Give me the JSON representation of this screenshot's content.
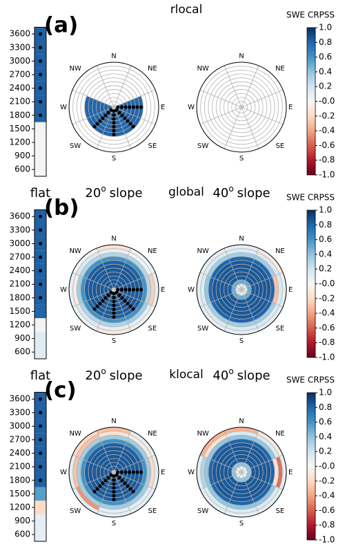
{
  "chart_data": {
    "type": "polar-grid",
    "aspects": [
      "N",
      "NE",
      "E",
      "SE",
      "S",
      "SW",
      "W",
      "NW"
    ],
    "elevations": [
      600,
      900,
      1200,
      1500,
      1800,
      2100,
      2400,
      2700,
      3000,
      3300,
      3600
    ],
    "flat_label": "flat",
    "slope_word": "slope",
    "degree_mark": "o",
    "colorbar": {
      "title": "SWE CRPSS",
      "colormap": "RdBu",
      "lim": [
        -1,
        1
      ],
      "ticks": [
        {
          "value": 1,
          "label": "1.0"
        },
        0.8,
        0.6,
        0.4,
        0.2,
        {
          "value": 0,
          "label": "-0.0"
        },
        -0.2,
        -0.4,
        -0.6,
        -0.8,
        {
          "value": -1,
          "label": "-1.0"
        }
      ]
    },
    "panels": [
      {
        "label": "(a)",
        "title": "rlocal",
        "flat_values": [
          0.02,
          0.02,
          0.02,
          0.02,
          0.82,
          0.82,
          0.82,
          0.82,
          0.82,
          0.82,
          0.82
        ],
        "significant": [
          false,
          false,
          false,
          false,
          true,
          true,
          true,
          true,
          true,
          true,
          true
        ],
        "polar": [
          {
            "slope": "20",
            "significant_aspects": [
              2,
              3,
              4,
              5
            ],
            "values": [
              [
                null,
                null,
                null,
                null,
                null,
                null,
                null,
                null,
                null,
                null,
                null
              ],
              [
                null,
                null,
                null,
                null,
                null,
                null,
                null,
                null,
                null,
                null,
                null
              ],
              [
                null,
                null,
                null,
                null,
                0.8,
                0.8,
                0.8,
                0.8,
                0.8,
                0.8,
                0.8
              ],
              [
                null,
                null,
                null,
                null,
                0.8,
                0.8,
                0.8,
                0.8,
                0.8,
                0.8,
                0.8
              ],
              [
                null,
                null,
                null,
                null,
                0.8,
                0.8,
                0.8,
                0.8,
                0.8,
                0.8,
                0.8
              ],
              [
                null,
                null,
                null,
                null,
                0.8,
                0.8,
                0.8,
                0.8,
                0.8,
                0.8,
                0.8
              ],
              [
                null,
                null,
                null,
                null,
                0.8,
                0.8,
                0.8,
                0.8,
                0.8,
                0.8,
                0.8
              ],
              [
                null,
                null,
                null,
                null,
                null,
                null,
                null,
                null,
                null,
                null,
                null
              ]
            ]
          },
          {
            "slope": "40",
            "values": [
              [
                null,
                null,
                null,
                null,
                null,
                null,
                null,
                null,
                null,
                null,
                null
              ],
              [
                null,
                null,
                null,
                null,
                null,
                null,
                null,
                null,
                null,
                null,
                null
              ],
              [
                null,
                null,
                null,
                null,
                null,
                null,
                null,
                null,
                null,
                null,
                null
              ],
              [
                null,
                null,
                null,
                null,
                null,
                null,
                null,
                null,
                null,
                null,
                null
              ],
              [
                null,
                null,
                null,
                null,
                null,
                null,
                null,
                null,
                null,
                null,
                null
              ],
              [
                null,
                null,
                null,
                null,
                null,
                null,
                null,
                null,
                null,
                null,
                null
              ],
              [
                null,
                null,
                null,
                null,
                null,
                null,
                null,
                null,
                null,
                null,
                null
              ],
              [
                null,
                null,
                null,
                null,
                null,
                null,
                null,
                null,
                null,
                null,
                null
              ]
            ]
          }
        ]
      },
      {
        "label": "(b)",
        "title": "global",
        "flat_values": [
          0.12,
          0.12,
          0.03,
          0.8,
          0.82,
          0.82,
          0.82,
          0.82,
          0.82,
          0.82,
          0.82
        ],
        "significant": [
          false,
          false,
          false,
          false,
          true,
          true,
          true,
          true,
          true,
          true,
          true
        ],
        "polar": [
          {
            "slope": "20",
            "significant_aspects": [
              2,
              3,
              4,
              5
            ],
            "values": [
              [
                -0.15,
                0.1,
                0.3,
                0.6,
                0.82,
                0.85,
                0.85,
                0.85,
                0.85,
                0.85,
                0.85
              ],
              [
                0.05,
                0.05,
                0.3,
                0.6,
                0.82,
                0.85,
                0.85,
                0.85,
                0.85,
                0.85,
                0.85
              ],
              [
                0.1,
                -0.25,
                0.3,
                0.6,
                0.82,
                0.85,
                0.85,
                0.85,
                0.85,
                0.85,
                0.85
              ],
              [
                0.05,
                0.1,
                0.35,
                0.6,
                0.82,
                0.85,
                0.85,
                0.85,
                0.85,
                0.85,
                0.85
              ],
              [
                -0.1,
                0.1,
                0.3,
                0.6,
                0.82,
                0.85,
                0.85,
                0.85,
                0.85,
                0.85,
                0.85
              ],
              [
                0.05,
                0.15,
                0.3,
                0.6,
                0.82,
                0.85,
                0.85,
                0.85,
                0.85,
                0.85,
                0.85
              ],
              [
                0.1,
                -0.1,
                0.35,
                0.6,
                0.82,
                0.85,
                0.85,
                0.85,
                0.85,
                0.85,
                0.85
              ],
              [
                0.05,
                0.15,
                0.3,
                0.6,
                0.82,
                0.85,
                0.85,
                0.85,
                0.85,
                0.85,
                0.85
              ]
            ]
          },
          {
            "slope": "40",
            "values": [
              [
                0.1,
                0.15,
                0.35,
                0.8,
                0.85,
                0.85,
                0.85,
                0.85,
                0.85,
                0.5,
                0.1
              ],
              [
                -0.1,
                0.15,
                0.35,
                0.8,
                0.85,
                0.85,
                0.85,
                0.85,
                0.85,
                0.5,
                0.1
              ],
              [
                0.1,
                0.15,
                -0.3,
                0.8,
                0.85,
                0.85,
                0.85,
                0.85,
                0.85,
                0.5,
                0.1
              ],
              [
                0.1,
                0.15,
                0.35,
                0.8,
                0.85,
                0.85,
                0.85,
                0.85,
                0.85,
                0.5,
                0.1
              ],
              [
                0.1,
                0.15,
                0.35,
                0.8,
                0.85,
                0.85,
                0.85,
                0.85,
                0.85,
                0.5,
                0.1
              ],
              [
                0.1,
                0.15,
                0.35,
                0.8,
                0.85,
                0.85,
                0.85,
                0.85,
                0.85,
                0.5,
                0.1
              ],
              [
                0.1,
                0.15,
                0.4,
                0.8,
                0.85,
                0.85,
                0.85,
                0.85,
                0.85,
                0.5,
                0.1
              ],
              [
                0.1,
                0.15,
                0.35,
                0.8,
                0.85,
                0.85,
                0.85,
                0.85,
                0.85,
                0.5,
                0.1
              ]
            ]
          }
        ]
      },
      {
        "label": "(c)",
        "title": "klocal",
        "flat_values": [
          0.1,
          0.1,
          -0.2,
          0.55,
          0.82,
          0.82,
          0.82,
          0.82,
          0.82,
          0.82,
          0.82
        ],
        "significant": [
          false,
          false,
          false,
          false,
          true,
          true,
          true,
          true,
          true,
          true,
          true
        ],
        "polar": [
          {
            "slope": "20",
            "significant_aspects": [
              2,
              3,
              4,
              5
            ],
            "values": [
              [
                -0.3,
                -0.15,
                0.35,
                0.6,
                0.82,
                0.85,
                0.85,
                0.85,
                0.85,
                0.85,
                0.85
              ],
              [
                0.1,
                -0.1,
                0.35,
                0.6,
                0.82,
                0.85,
                0.85,
                0.85,
                0.85,
                0.85,
                0.85
              ],
              [
                0.1,
                -0.2,
                0.35,
                0.6,
                0.82,
                0.85,
                0.85,
                0.85,
                0.85,
                0.85,
                0.85
              ],
              [
                0.1,
                0.1,
                0.35,
                0.6,
                0.82,
                0.85,
                0.85,
                0.85,
                0.85,
                0.85,
                0.85
              ],
              [
                0.1,
                0.1,
                0.35,
                0.6,
                0.82,
                0.85,
                0.85,
                0.85,
                0.85,
                0.85,
                0.85
              ],
              [
                0.1,
                -0.45,
                0.35,
                0.6,
                0.82,
                0.85,
                0.85,
                0.85,
                0.85,
                0.85,
                0.85
              ],
              [
                0.1,
                -0.3,
                0.35,
                0.6,
                0.82,
                0.85,
                0.85,
                0.85,
                0.85,
                0.85,
                0.85
              ],
              [
                -0.2,
                -0.3,
                0.35,
                0.6,
                0.82,
                0.85,
                0.85,
                0.85,
                0.85,
                0.85,
                0.85
              ]
            ]
          },
          {
            "slope": "40",
            "values": [
              [
                -0.35,
                0.15,
                0.4,
                0.8,
                0.85,
                0.85,
                0.85,
                0.85,
                0.85,
                0.4,
                0.05
              ],
              [
                -0.1,
                0.15,
                0.4,
                0.8,
                0.85,
                0.85,
                0.85,
                0.85,
                0.85,
                0.4,
                0.05
              ],
              [
                0.1,
                -0.55,
                -0.15,
                0.8,
                0.85,
                0.85,
                0.85,
                0.85,
                0.85,
                0.4,
                0.05
              ],
              [
                0.1,
                0.15,
                0.4,
                0.8,
                0.85,
                0.85,
                0.85,
                0.85,
                0.85,
                0.4,
                0.05
              ],
              [
                0.1,
                0.15,
                0.4,
                0.8,
                0.85,
                0.85,
                0.85,
                0.85,
                0.85,
                0.4,
                0.05
              ],
              [
                0.1,
                0.15,
                0.4,
                0.8,
                0.85,
                0.85,
                0.85,
                0.85,
                0.85,
                0.4,
                0.05
              ],
              [
                0.1,
                0.3,
                0.4,
                0.8,
                0.85,
                0.85,
                0.85,
                0.85,
                0.85,
                0.4,
                0.05
              ],
              [
                -0.35,
                -0.15,
                0.4,
                0.8,
                0.85,
                0.85,
                0.85,
                0.85,
                0.85,
                0.4,
                0.05
              ]
            ]
          }
        ]
      }
    ]
  }
}
